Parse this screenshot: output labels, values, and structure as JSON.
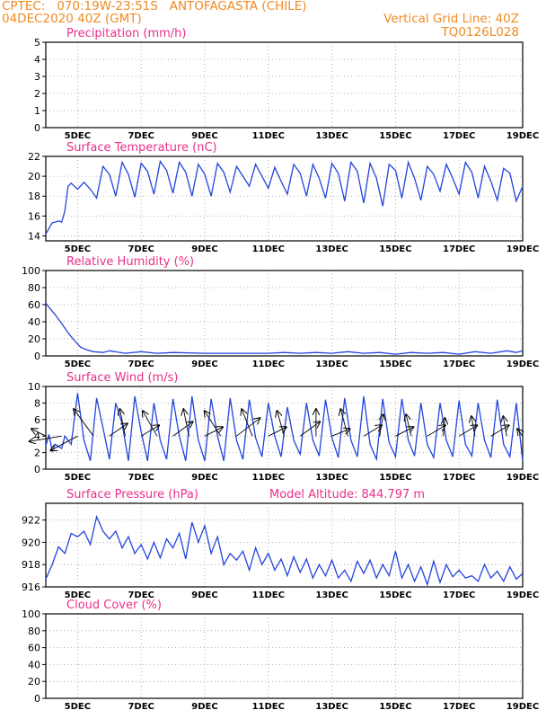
{
  "header": {
    "line1": "CPTEC:   070:19W-23:51S   ANTOFAGASTA (CHILE)",
    "line2": "04DEC2020 40Z (GMT)",
    "grid_note": "Vertical Grid Line: 40Z",
    "code": "TQ0126L028",
    "model_altitude": "Model Altitude: 844.797 m"
  },
  "colors": {
    "header": "#f08a24",
    "title": "#e8308a",
    "line": "#2244dd",
    "grid": "#9a9a9a"
  },
  "date_labels": [
    "5DEC",
    "7DEC",
    "9DEC",
    "11DEC",
    "13DEC",
    "15DEC",
    "17DEC",
    "19DEC"
  ],
  "chart_data": [
    {
      "type": "line",
      "title": "Precipitation (mm/h)",
      "ylim": [
        0,
        5
      ],
      "yticks": [
        0,
        1,
        2,
        3,
        4,
        5
      ],
      "x": [],
      "values": [],
      "grid": true
    },
    {
      "type": "line",
      "title": "Surface Temperature (nC)",
      "ylim": [
        13.5,
        22
      ],
      "yticks": [
        14,
        16,
        18,
        20,
        22
      ],
      "x": [
        4.0,
        4.2,
        4.4,
        4.5,
        4.6,
        4.7,
        4.8,
        5.0,
        5.2,
        5.4,
        5.6,
        5.8,
        6.0,
        6.2,
        6.4,
        6.6,
        6.8,
        7.0,
        7.2,
        7.4,
        7.6,
        7.8,
        8.0,
        8.2,
        8.4,
        8.6,
        8.8,
        9.0,
        9.2,
        9.4,
        9.6,
        9.8,
        10.0,
        10.2,
        10.4,
        10.6,
        10.8,
        11.0,
        11.2,
        11.4,
        11.6,
        11.8,
        12.0,
        12.2,
        12.4,
        12.6,
        12.8,
        13.0,
        13.2,
        13.4,
        13.6,
        13.8,
        14.0,
        14.2,
        14.4,
        14.6,
        14.8,
        15.0,
        15.2,
        15.4,
        15.6,
        15.8,
        16.0,
        16.2,
        16.4,
        16.6,
        16.8,
        17.0,
        17.2,
        17.4,
        17.6,
        17.8,
        18.0,
        18.2,
        18.4,
        18.6,
        18.8,
        19.0
      ],
      "values": [
        14.2,
        15.3,
        15.5,
        15.4,
        16.5,
        19.0,
        19.3,
        18.7,
        19.4,
        18.7,
        17.8,
        21.0,
        20.2,
        18.0,
        21.4,
        20.2,
        17.9,
        21.3,
        20.5,
        18.2,
        21.5,
        20.6,
        18.3,
        21.4,
        20.4,
        18.0,
        21.2,
        20.2,
        18.0,
        21.3,
        20.4,
        18.4,
        21.0,
        20.0,
        19.0,
        21.2,
        20.0,
        18.8,
        20.9,
        19.5,
        18.2,
        21.2,
        20.3,
        18.0,
        21.2,
        19.8,
        17.8,
        21.3,
        20.3,
        17.5,
        21.4,
        20.5,
        17.3,
        21.3,
        19.8,
        17.0,
        21.2,
        20.6,
        17.8,
        21.4,
        19.8,
        17.6,
        21.0,
        20.2,
        18.5,
        21.2,
        19.8,
        18.2,
        21.4,
        20.4,
        17.8,
        21.0,
        19.5,
        17.6,
        20.8,
        20.3,
        17.5,
        19.0
      ],
      "grid": true
    },
    {
      "type": "line",
      "title": "Relative Humidity (%)",
      "ylim": [
        0,
        100
      ],
      "yticks": [
        0,
        20,
        40,
        60,
        80,
        100
      ],
      "x": [
        4.0,
        4.1,
        4.3,
        4.5,
        4.7,
        4.9,
        5.1,
        5.3,
        5.5,
        5.8,
        6.0,
        6.5,
        7.0,
        7.5,
        8.0,
        9.0,
        10.0,
        11.0,
        11.5,
        12.0,
        12.5,
        13.0,
        13.5,
        14.0,
        14.5,
        15.0,
        15.5,
        16.0,
        16.5,
        17.0,
        17.5,
        18.0,
        18.5,
        18.8,
        19.0
      ],
      "values": [
        62,
        57,
        48,
        38,
        27,
        18,
        10,
        7,
        5,
        4,
        6,
        3,
        5,
        3,
        4,
        3,
        3,
        3,
        4,
        3,
        4,
        3,
        5,
        3,
        4,
        2,
        4,
        3,
        4,
        2,
        5,
        3,
        6,
        4,
        6
      ],
      "grid": true
    },
    {
      "type": "line",
      "title": "Surface Wind (m/s)",
      "ylim": [
        0,
        10
      ],
      "yticks": [
        0,
        2,
        4,
        6,
        8,
        10
      ],
      "x": [
        4.0,
        4.1,
        4.2,
        4.3,
        4.5,
        4.6,
        4.8,
        5.0,
        5.2,
        5.4,
        5.6,
        5.8,
        6.0,
        6.2,
        6.4,
        6.6,
        6.8,
        7.0,
        7.2,
        7.4,
        7.6,
        7.8,
        8.0,
        8.2,
        8.4,
        8.6,
        8.8,
        9.0,
        9.2,
        9.4,
        9.6,
        9.8,
        10.0,
        10.2,
        10.4,
        10.6,
        10.8,
        11.0,
        11.2,
        11.4,
        11.6,
        11.8,
        12.0,
        12.2,
        12.4,
        12.6,
        12.8,
        13.0,
        13.2,
        13.4,
        13.6,
        13.8,
        14.0,
        14.2,
        14.4,
        14.6,
        14.8,
        15.0,
        15.2,
        15.4,
        15.6,
        15.8,
        16.0,
        16.2,
        16.4,
        16.6,
        16.8,
        17.0,
        17.2,
        17.4,
        17.6,
        17.8,
        18.0,
        18.2,
        18.4,
        18.6,
        18.8,
        19.0
      ],
      "values": [
        2.8,
        4.2,
        2.2,
        3.0,
        2.5,
        4.0,
        3.0,
        9.2,
        3.5,
        1.0,
        8.6,
        5.0,
        1.2,
        8.0,
        5.5,
        1.0,
        8.8,
        4.5,
        1.0,
        8.0,
        3.5,
        1.2,
        8.5,
        4.0,
        1.0,
        8.8,
        3.5,
        1.0,
        8.5,
        4.0,
        1.0,
        8.6,
        3.5,
        1.2,
        8.4,
        3.8,
        1.5,
        8.0,
        4.0,
        1.5,
        7.5,
        3.5,
        1.8,
        8.0,
        3.5,
        1.6,
        8.4,
        3.8,
        1.4,
        8.6,
        3.5,
        1.5,
        8.8,
        3.0,
        1.2,
        8.5,
        3.2,
        1.5,
        8.5,
        3.5,
        1.6,
        8.0,
        3.0,
        1.4,
        8.0,
        3.5,
        1.5,
        8.3,
        3.0,
        1.6,
        8.0,
        3.5,
        1.4,
        8.4,
        3.0,
        1.5,
        8.0,
        1.0
      ],
      "barbs": [
        {
          "x": 4.0,
          "u": -0.8,
          "v": 0.4
        },
        {
          "x": 4.5,
          "u": -1.8,
          "v": -0.3
        },
        {
          "x": 5.0,
          "u": -1.5,
          "v": -0.8
        },
        {
          "x": 5.5,
          "u": -1.1,
          "v": 1.5
        },
        {
          "x": 6.0,
          "u": 1.0,
          "v": 0.7
        },
        {
          "x": 6.5,
          "u": -0.3,
          "v": 1.5
        },
        {
          "x": 7.0,
          "u": 1.0,
          "v": 0.6
        },
        {
          "x": 7.5,
          "u": -0.8,
          "v": 1.4
        },
        {
          "x": 8.0,
          "u": 1.1,
          "v": 0.8
        },
        {
          "x": 8.5,
          "u": -0.3,
          "v": 1.5
        },
        {
          "x": 9.0,
          "u": 1.0,
          "v": 0.5
        },
        {
          "x": 9.5,
          "u": -0.9,
          "v": 1.4
        },
        {
          "x": 10.0,
          "u": 1.3,
          "v": 1.0
        },
        {
          "x": 10.5,
          "u": -0.6,
          "v": 1.5
        },
        {
          "x": 11.0,
          "u": 1.0,
          "v": 0.5
        },
        {
          "x": 11.5,
          "u": -0.4,
          "v": 1.4
        },
        {
          "x": 12.0,
          "u": 1.1,
          "v": 0.8
        },
        {
          "x": 12.5,
          "u": 0.0,
          "v": 1.5
        },
        {
          "x": 13.0,
          "u": 1.0,
          "v": 0.4
        },
        {
          "x": 13.5,
          "u": -0.4,
          "v": 1.5
        },
        {
          "x": 14.0,
          "u": 1.0,
          "v": 0.6
        },
        {
          "x": 14.5,
          "u": 0.2,
          "v": 1.2
        },
        {
          "x": 15.0,
          "u": 1.0,
          "v": 0.5
        },
        {
          "x": 15.5,
          "u": -0.3,
          "v": 1.2
        },
        {
          "x": 16.0,
          "u": 1.0,
          "v": 0.6
        },
        {
          "x": 16.5,
          "u": 0.1,
          "v": 1.0
        },
        {
          "x": 17.0,
          "u": 1.0,
          "v": 0.6
        },
        {
          "x": 17.5,
          "u": -0.2,
          "v": 1.1
        },
        {
          "x": 18.0,
          "u": 1.0,
          "v": 0.6
        },
        {
          "x": 18.5,
          "u": -0.2,
          "v": 1.1
        },
        {
          "x": 19.0,
          "u": -0.3,
          "v": 0.4
        }
      ],
      "grid": true
    },
    {
      "type": "line",
      "title": "Surface Pressure (hPa)",
      "ylim": [
        916,
        923.5
      ],
      "yticks": [
        916,
        918,
        920,
        922
      ],
      "x": [
        4.0,
        4.2,
        4.4,
        4.6,
        4.8,
        5.0,
        5.2,
        5.4,
        5.6,
        5.8,
        6.0,
        6.2,
        6.4,
        6.6,
        6.8,
        7.0,
        7.2,
        7.4,
        7.6,
        7.8,
        8.0,
        8.2,
        8.4,
        8.6,
        8.8,
        9.0,
        9.2,
        9.4,
        9.6,
        9.8,
        10.0,
        10.2,
        10.4,
        10.6,
        10.8,
        11.0,
        11.2,
        11.4,
        11.6,
        11.8,
        12.0,
        12.2,
        12.4,
        12.6,
        12.8,
        13.0,
        13.2,
        13.4,
        13.6,
        13.8,
        14.0,
        14.2,
        14.4,
        14.6,
        14.8,
        15.0,
        15.2,
        15.4,
        15.6,
        15.8,
        16.0,
        16.2,
        16.4,
        16.6,
        16.8,
        17.0,
        17.2,
        17.4,
        17.6,
        17.8,
        18.0,
        18.2,
        18.4,
        18.6,
        18.8,
        19.0
      ],
      "values": [
        916.7,
        918.0,
        919.6,
        919.0,
        920.8,
        920.5,
        921.0,
        919.8,
        922.3,
        921.0,
        920.3,
        921.0,
        919.5,
        920.5,
        919.0,
        919.8,
        918.5,
        920.0,
        918.6,
        920.3,
        919.5,
        920.8,
        918.5,
        921.8,
        920.0,
        921.5,
        919.0,
        920.5,
        918.0,
        919.0,
        918.4,
        919.2,
        917.5,
        919.5,
        918.0,
        919.0,
        917.5,
        918.5,
        917.0,
        918.7,
        917.3,
        918.5,
        916.8,
        918.0,
        917.0,
        918.4,
        916.8,
        917.5,
        916.5,
        918.3,
        917.2,
        918.4,
        916.8,
        918.0,
        917.0,
        919.2,
        916.8,
        918.0,
        916.5,
        917.8,
        916.2,
        918.3,
        916.4,
        918.0,
        916.9,
        917.5,
        916.8,
        917.0,
        916.5,
        918.0,
        916.8,
        917.4,
        916.5,
        917.8,
        916.7,
        917.2
      ],
      "grid": true
    },
    {
      "type": "line",
      "title": "Cloud Cover (%)",
      "ylim": [
        0,
        100
      ],
      "yticks": [
        0,
        20,
        40,
        60,
        80,
        100
      ],
      "x": [],
      "values": [],
      "grid": true
    }
  ]
}
